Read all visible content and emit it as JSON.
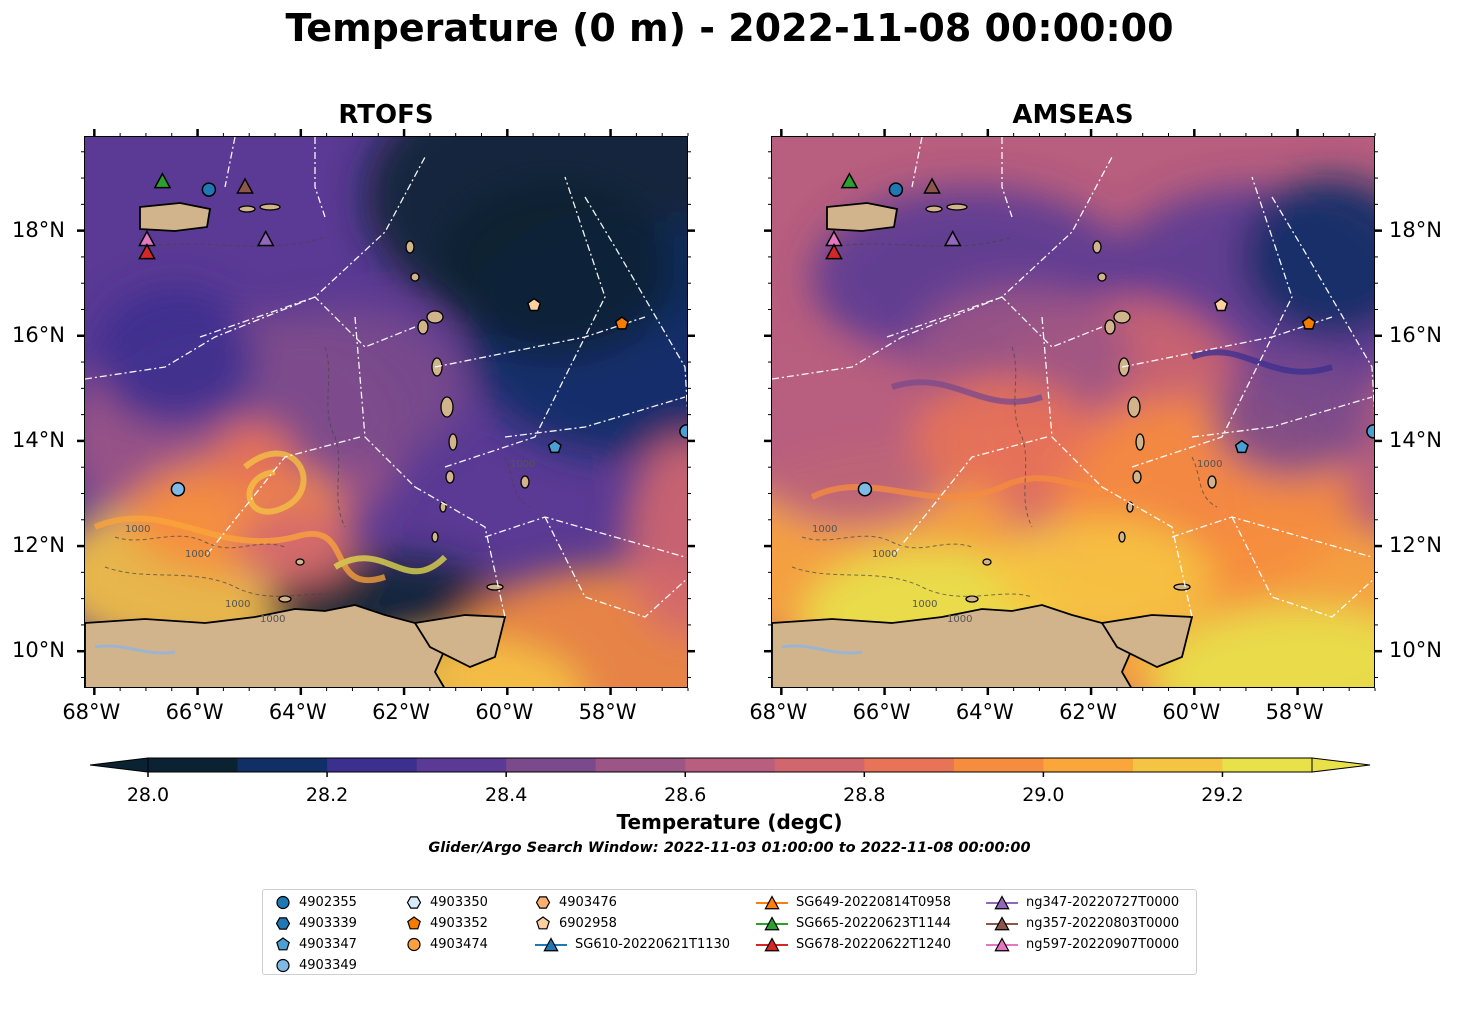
{
  "title": "Temperature (0 m) - 2022-11-08 00:00:00",
  "panels": [
    {
      "name": "RTOFS"
    },
    {
      "name": "AMSEAS"
    }
  ],
  "lon_labels": [
    "68°W",
    "66°W",
    "64°W",
    "62°W",
    "60°W",
    "58°W"
  ],
  "lat_labels": [
    "18°N",
    "16°N",
    "14°N",
    "12°N",
    "10°N"
  ],
  "contour_labels": [
    "1000",
    "1000",
    "1000",
    "1000",
    "1000"
  ],
  "colorbar": {
    "title": "Temperature (degC)",
    "tick_labels": [
      "28.0",
      "28.2",
      "28.4",
      "28.6",
      "28.8",
      "29.0",
      "29.2"
    ],
    "colors": [
      "#0b2233",
      "#0f2f66",
      "#3b2f8f",
      "#5a3a94",
      "#7a4a8c",
      "#9c5585",
      "#b85e7e",
      "#d2666f",
      "#e87357",
      "#f68c3e",
      "#fba63a",
      "#f6c443",
      "#e8e14a"
    ],
    "min": 28.0,
    "max": 29.3,
    "step": 0.1
  },
  "search_window": "Glider/Argo Search Window: 2022-11-03 01:00:00 to 2022-11-08 00:00:00",
  "legend": {
    "items": [
      {
        "label": "4902355",
        "marker": "circle",
        "color": "#1f77b4"
      },
      {
        "label": "4903339",
        "marker": "hexagon",
        "color": "#1f77b4"
      },
      {
        "label": "4903347",
        "marker": "pentagon",
        "color": "#4aa0d5"
      },
      {
        "label": "4903349",
        "marker": "circle",
        "color": "#7fb9e6"
      },
      {
        "label": "4903350",
        "marker": "hexagon",
        "color": "#d6ecfa"
      },
      {
        "label": "4903352",
        "marker": "pentagon",
        "color": "#f57c00"
      },
      {
        "label": "4903474",
        "marker": "circle",
        "color": "#ffa040"
      },
      {
        "label": "4903476",
        "marker": "hexagon",
        "color": "#ffb070"
      },
      {
        "label": "6902958",
        "marker": "pentagon",
        "color": "#ffd0a0"
      },
      {
        "label": "SG610-20220621T1130",
        "marker": "triangle-line",
        "color": "#1f77b4"
      },
      {
        "label": "SG649-20220814T0958",
        "marker": "triangle-line",
        "color": "#ff7f0e"
      },
      {
        "label": "SG665-20220623T1144",
        "marker": "triangle-line",
        "color": "#2ca02c"
      },
      {
        "label": "SG678-20220622T1240",
        "marker": "triangle-line",
        "color": "#d62728"
      },
      {
        "label": "ng347-20220727T0000",
        "marker": "triangle-line",
        "color": "#9467bd"
      },
      {
        "label": "ng357-20220803T0000",
        "marker": "triangle-line",
        "color": "#8c564b"
      },
      {
        "label": "ng597-20220907T0000",
        "marker": "triangle-line",
        "color": "#e377c2"
      }
    ]
  },
  "map_extent": {
    "lon_min": -68.2,
    "lon_max": -56.5,
    "lat_min": 9.3,
    "lat_max": 19.8
  },
  "observations": [
    {
      "lon": -66.7,
      "lat": 18.95,
      "marker": "triangle",
      "color": "#2ca02c"
    },
    {
      "lon": -65.8,
      "lat": 18.8,
      "marker": "circle",
      "color": "#1f77b4"
    },
    {
      "lon": -65.1,
      "lat": 18.85,
      "marker": "triangle",
      "color": "#8c564b"
    },
    {
      "lon": -64.7,
      "lat": 17.85,
      "marker": "triangle",
      "color": "#9467bd"
    },
    {
      "lon": -67.0,
      "lat": 17.85,
      "marker": "triangle",
      "color": "#e377c2"
    },
    {
      "lon": -67.0,
      "lat": 17.6,
      "marker": "triangle",
      "color": "#d62728"
    },
    {
      "lon": -59.5,
      "lat": 16.6,
      "marker": "pentagon",
      "color": "#ffd0a0"
    },
    {
      "lon": -57.8,
      "lat": 16.25,
      "marker": "pentagon",
      "color": "#f57c00"
    },
    {
      "lon": -59.1,
      "lat": 13.9,
      "marker": "pentagon",
      "color": "#4aa0d5"
    },
    {
      "lon": -66.4,
      "lat": 13.1,
      "marker": "circle",
      "color": "#7fb9e6"
    },
    {
      "lon": -56.55,
      "lat": 14.2,
      "marker": "circle",
      "color": "#4aa0d5"
    }
  ]
}
